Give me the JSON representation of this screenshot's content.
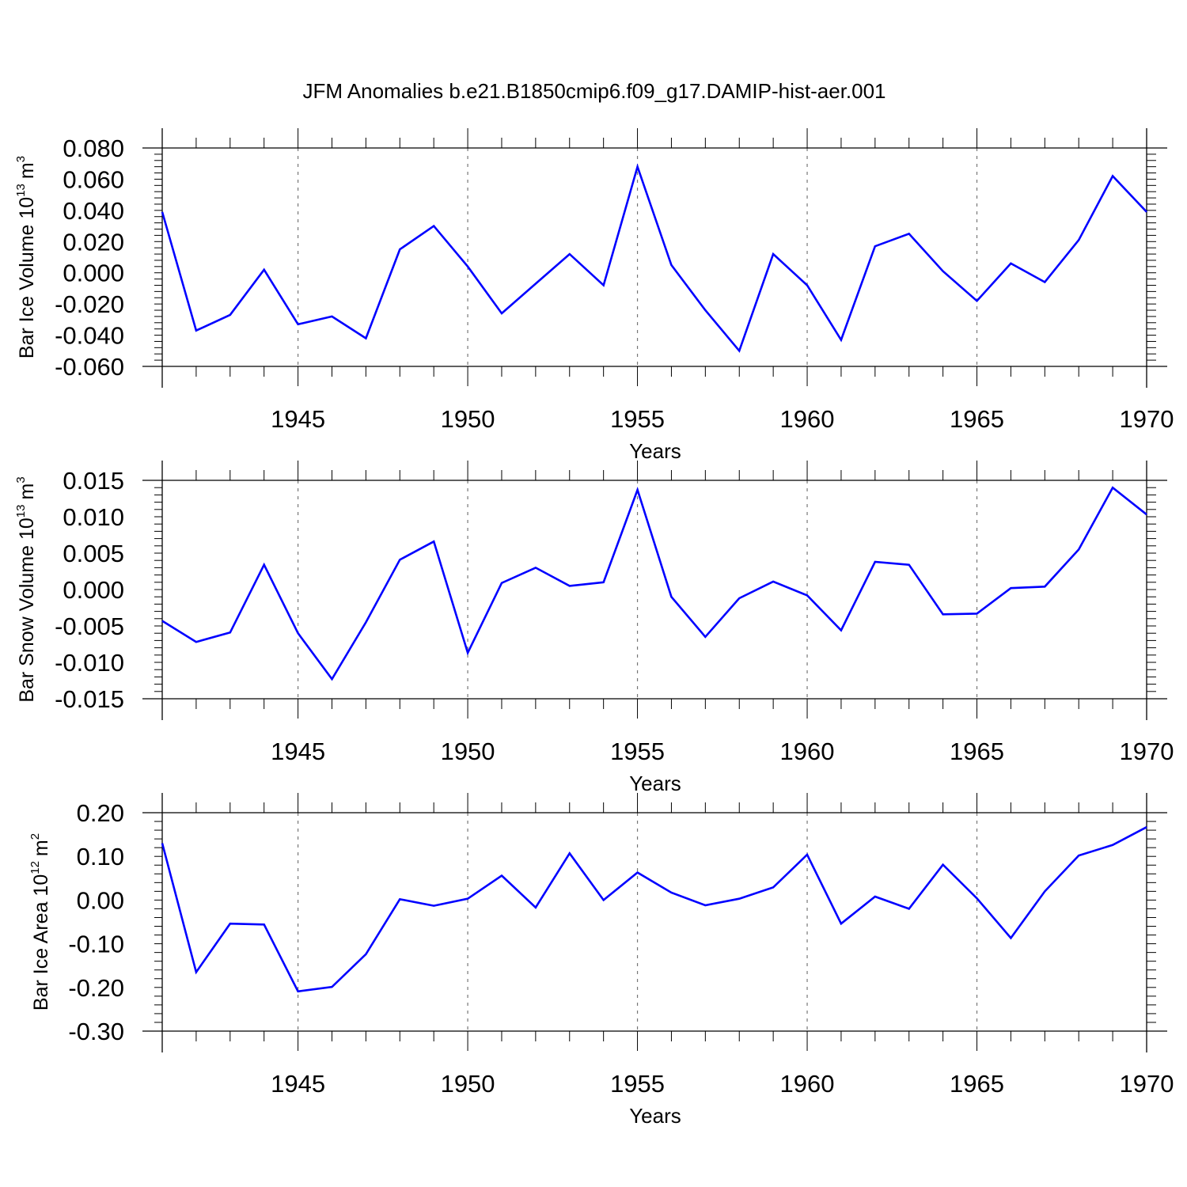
{
  "figure": {
    "title": "JFM Anomalies b.e21.B1850cmip6.f09_g17.DAMIP-hist-aer.001",
    "line_color": "#0000ff",
    "grid_color": "#777777"
  },
  "chart_data": [
    {
      "type": "line",
      "xlabel": "Years",
      "ylabel_text": "Bar Ice Volume 10",
      "ylabel_exp": "13",
      "ylabel_unit": "m",
      "ylabel_unit_exp": "3",
      "xlim": [
        1941,
        1970
      ],
      "ylim": [
        -0.06,
        0.08
      ],
      "xticks": [
        1945,
        1950,
        1955,
        1960,
        1965,
        1970
      ],
      "xtick_labels": [
        "1945",
        "1950",
        "1955",
        "1960",
        "1965",
        "1970"
      ],
      "yticks": [
        -0.06,
        -0.04,
        -0.02,
        0.0,
        0.02,
        0.04,
        0.06,
        0.08
      ],
      "ytick_labels": [
        "-0.060",
        "-0.040",
        "-0.020",
        "0.000",
        "0.020",
        "0.040",
        "0.060",
        "0.080"
      ],
      "y_minor_step": 0.004,
      "grid": "vertical-dashed",
      "x": [
        1941,
        1942,
        1943,
        1944,
        1945,
        1946,
        1947,
        1948,
        1949,
        1950,
        1951,
        1952,
        1953,
        1954,
        1955,
        1956,
        1957,
        1958,
        1959,
        1960,
        1961,
        1962,
        1963,
        1964,
        1965,
        1966,
        1967,
        1968,
        1969,
        1970
      ],
      "values": [
        0.039,
        -0.037,
        -0.027,
        0.002,
        -0.033,
        -0.028,
        -0.042,
        0.015,
        0.03,
        0.004,
        -0.026,
        -0.007,
        0.012,
        -0.008,
        0.068,
        0.005,
        -0.024,
        -0.05,
        0.012,
        -0.008,
        -0.043,
        0.017,
        0.025,
        0.001,
        -0.018,
        0.006,
        -0.006,
        0.021,
        0.062,
        0.039
      ]
    },
    {
      "type": "line",
      "xlabel": "Years",
      "ylabel_text": "Bar Snow Volume 10",
      "ylabel_exp": "13",
      "ylabel_unit": "m",
      "ylabel_unit_exp": "3",
      "xlim": [
        1941,
        1970
      ],
      "ylim": [
        -0.015,
        0.015
      ],
      "xticks": [
        1945,
        1950,
        1955,
        1960,
        1965,
        1970
      ],
      "xtick_labels": [
        "1945",
        "1950",
        "1955",
        "1960",
        "1965",
        "1970"
      ],
      "yticks": [
        -0.015,
        -0.01,
        -0.005,
        0.0,
        0.005,
        0.01,
        0.015
      ],
      "ytick_labels": [
        "-0.015",
        "-0.010",
        "-0.005",
        "0.000",
        "0.005",
        "0.010",
        "0.015"
      ],
      "y_minor_step": 0.001,
      "grid": "vertical-dashed",
      "x": [
        1941,
        1942,
        1943,
        1944,
        1945,
        1946,
        1947,
        1948,
        1949,
        1950,
        1951,
        1952,
        1953,
        1954,
        1955,
        1956,
        1957,
        1958,
        1959,
        1960,
        1961,
        1962,
        1963,
        1964,
        1965,
        1966,
        1967,
        1968,
        1969,
        1970
      ],
      "values": [
        -0.0043,
        -0.0072,
        -0.0059,
        0.0034,
        -0.006,
        -0.0123,
        -0.0045,
        0.0041,
        0.0066,
        -0.0087,
        0.0009,
        0.003,
        0.0005,
        0.001,
        0.0137,
        -0.001,
        -0.0065,
        -0.0012,
        0.0011,
        -0.0008,
        -0.0056,
        0.0038,
        0.0034,
        -0.0034,
        -0.0033,
        0.0002,
        0.0004,
        0.0055,
        0.014,
        0.0103
      ]
    },
    {
      "type": "line",
      "xlabel": "Years",
      "ylabel_text": "Bar Ice Area 10",
      "ylabel_exp": "12",
      "ylabel_unit": "m",
      "ylabel_unit_exp": "2",
      "xlim": [
        1941,
        1970
      ],
      "ylim": [
        -0.3,
        0.2
      ],
      "xticks": [
        1945,
        1950,
        1955,
        1960,
        1965,
        1970
      ],
      "xtick_labels": [
        "1945",
        "1950",
        "1955",
        "1960",
        "1965",
        "1970"
      ],
      "yticks": [
        -0.3,
        -0.2,
        -0.1,
        0.0,
        0.1,
        0.2
      ],
      "ytick_labels": [
        "-0.30",
        "-0.20",
        "-0.10",
        "0.00",
        "0.10",
        "0.20"
      ],
      "y_minor_step": 0.02,
      "grid": "vertical-dashed",
      "x": [
        1941,
        1942,
        1943,
        1944,
        1945,
        1946,
        1947,
        1948,
        1949,
        1950,
        1951,
        1952,
        1953,
        1954,
        1955,
        1956,
        1957,
        1958,
        1959,
        1960,
        1961,
        1962,
        1963,
        1964,
        1965,
        1966,
        1967,
        1968,
        1969,
        1970
      ],
      "values": [
        0.13,
        -0.165,
        -0.054,
        -0.056,
        -0.209,
        -0.199,
        -0.124,
        0.002,
        -0.013,
        0.003,
        0.056,
        -0.017,
        0.107,
        0.0,
        0.063,
        0.017,
        -0.012,
        0.003,
        0.029,
        0.104,
        -0.054,
        0.008,
        -0.02,
        0.081,
        0.004,
        -0.087,
        0.02,
        0.102,
        0.126,
        0.167
      ]
    }
  ]
}
